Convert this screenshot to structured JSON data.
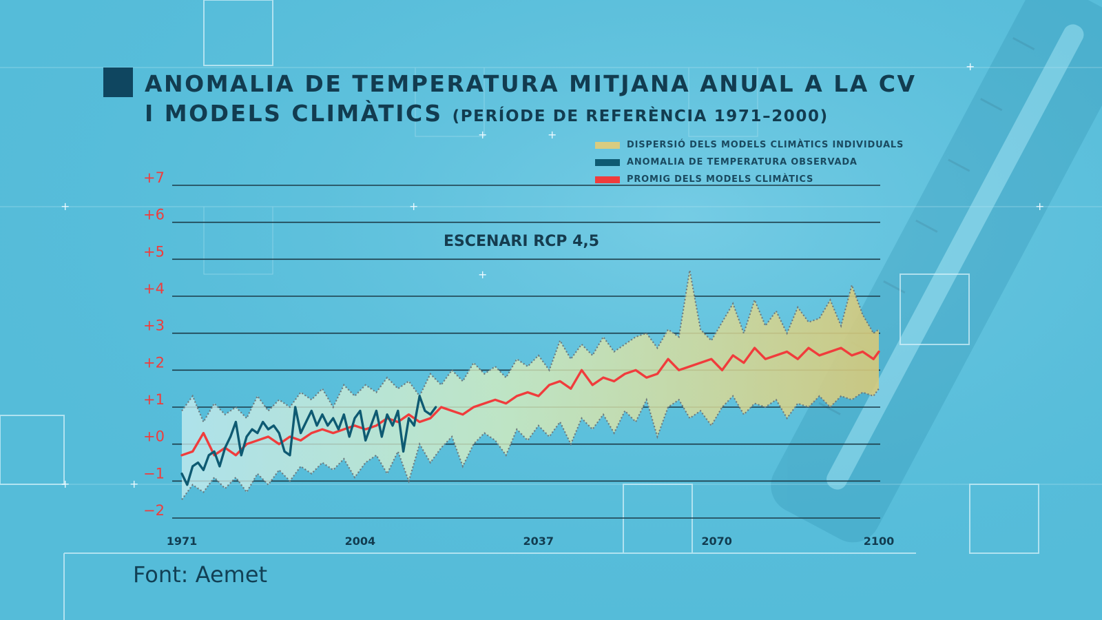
{
  "title": {
    "line1": "ANOMALIA DE TEMPERATURA MITJANA ANUAL A LA CV",
    "line2": "I MODELS CLIMÀTICS",
    "line2_sub": "(PERÍODE DE REFERÈNCIA 1971–2000)"
  },
  "legend": [
    {
      "label": "DISPERSIÓ DELS MODELS CLIMÀTICS INDIVIDUALS",
      "color": "#d9cc80"
    },
    {
      "label": "ANOMALIA DE TEMPERATURA OBSERVADA",
      "color": "#0e5a72"
    },
    {
      "label": "PROMIG DELS MODELS CLIMÀTICS",
      "color": "#f03c3c"
    }
  ],
  "source": "Font: Aemet",
  "colors": {
    "background": "#55bcd9",
    "title": "#123c50",
    "tick_label": "#f03c3c",
    "observed": "#0e5a72",
    "model_mean": "#f03c3c",
    "band_start": "#cbeef0",
    "band_end": "#d6c97a",
    "grid": "#1b3a47"
  },
  "chart_data": {
    "type": "line",
    "title": "ANOMALIA DE TEMPERATURA MITJANA ANUAL A LA CV I MODELS CLIMÀTICS (PERÍODE DE REFERÈNCIA 1971–2000)",
    "annotation": "ESCENARI RCP 4,5",
    "xlabel": "",
    "ylabel": "",
    "xlim": [
      1971,
      2100
    ],
    "ylim": [
      -2,
      7
    ],
    "grid": true,
    "legend_position": "top-right",
    "x_ticks": [
      1971,
      2004,
      2037,
      2070,
      2100
    ],
    "x_tick_labels": [
      "1971",
      "2004",
      "2037",
      "2070",
      "2100"
    ],
    "y_ticks": [
      7,
      6,
      5,
      4,
      3,
      2,
      1,
      0,
      -1,
      -2
    ],
    "y_tick_labels": [
      "+7",
      "+6",
      "+5",
      "+4",
      "+3",
      "+2",
      "+1",
      "+0",
      "−1",
      "−2"
    ],
    "series": [
      {
        "name": "DISPERSIÓ DELS MODELS CLIMÀTICS INDIVIDUALS",
        "kind": "band",
        "x": [
          1971,
          1973,
          1975,
          1977,
          1979,
          1981,
          1983,
          1985,
          1987,
          1989,
          1991,
          1993,
          1995,
          1997,
          1999,
          2001,
          2003,
          2005,
          2007,
          2009,
          2011,
          2013,
          2015,
          2017,
          2019,
          2021,
          2023,
          2025,
          2027,
          2029,
          2031,
          2033,
          2035,
          2037,
          2039,
          2041,
          2043,
          2045,
          2047,
          2049,
          2051,
          2053,
          2055,
          2057,
          2059,
          2061,
          2063,
          2065,
          2067,
          2069,
          2071,
          2073,
          2075,
          2077,
          2079,
          2081,
          2083,
          2085,
          2087,
          2089,
          2091,
          2093,
          2095,
          2097,
          2099,
          2100
        ],
        "upper": [
          0.9,
          1.3,
          0.6,
          1.1,
          0.8,
          1.0,
          0.7,
          1.3,
          0.9,
          1.2,
          1.0,
          1.4,
          1.2,
          1.5,
          1.0,
          1.6,
          1.3,
          1.6,
          1.4,
          1.8,
          1.5,
          1.7,
          1.3,
          1.9,
          1.6,
          2.0,
          1.7,
          2.2,
          1.9,
          2.1,
          1.8,
          2.3,
          2.1,
          2.4,
          2.0,
          2.8,
          2.3,
          2.7,
          2.4,
          2.9,
          2.5,
          2.7,
          2.9,
          3.0,
          2.6,
          3.1,
          2.9,
          4.7,
          3.1,
          2.8,
          3.3,
          3.8,
          3.0,
          3.9,
          3.2,
          3.6,
          3.0,
          3.7,
          3.3,
          3.4,
          3.9,
          3.2,
          4.3,
          3.5,
          3.0,
          3.1
        ],
        "lower": [
          -1.5,
          -1.1,
          -1.3,
          -0.9,
          -1.2,
          -0.9,
          -1.3,
          -0.8,
          -1.1,
          -0.7,
          -1.0,
          -0.6,
          -0.8,
          -0.5,
          -0.7,
          -0.4,
          -0.9,
          -0.5,
          -0.3,
          -0.8,
          -0.2,
          -1.0,
          0.0,
          -0.5,
          -0.1,
          0.2,
          -0.6,
          0.0,
          0.3,
          0.1,
          -0.3,
          0.4,
          0.1,
          0.5,
          0.2,
          0.6,
          0.0,
          0.7,
          0.4,
          0.8,
          0.3,
          0.9,
          0.6,
          1.2,
          0.2,
          1.0,
          1.2,
          0.7,
          0.9,
          0.5,
          1.0,
          1.3,
          0.8,
          1.1,
          1.0,
          1.2,
          0.7,
          1.1,
          1.0,
          1.3,
          1.0,
          1.3,
          1.2,
          1.4,
          1.3,
          1.5
        ]
      },
      {
        "name": "ANOMALIA DE TEMPERATURA OBSERVADA",
        "kind": "line",
        "x": [
          1971,
          1972,
          1973,
          1974,
          1975,
          1976,
          1977,
          1978,
          1979,
          1980,
          1981,
          1982,
          1983,
          1984,
          1985,
          1986,
          1987,
          1988,
          1989,
          1990,
          1991,
          1992,
          1993,
          1994,
          1995,
          1996,
          1997,
          1998,
          1999,
          2000,
          2001,
          2002,
          2003,
          2004,
          2005,
          2006,
          2007,
          2008,
          2009,
          2010,
          2011,
          2012,
          2013,
          2014,
          2015,
          2016,
          2017,
          2018
        ],
        "values": [
          -0.8,
          -1.1,
          -0.6,
          -0.5,
          -0.7,
          -0.3,
          -0.2,
          -0.6,
          -0.1,
          0.2,
          0.6,
          -0.3,
          0.2,
          0.4,
          0.3,
          0.6,
          0.4,
          0.5,
          0.3,
          -0.2,
          -0.3,
          1.0,
          0.3,
          0.6,
          0.9,
          0.5,
          0.8,
          0.5,
          0.7,
          0.4,
          0.8,
          0.2,
          0.7,
          0.9,
          0.1,
          0.5,
          0.9,
          0.2,
          0.8,
          0.5,
          0.9,
          -0.2,
          0.7,
          0.5,
          1.3,
          0.9,
          0.8,
          1.0
        ]
      },
      {
        "name": "PROMIG DELS MODELS CLIMÀTICS",
        "kind": "line",
        "x": [
          1971,
          1973,
          1975,
          1977,
          1979,
          1981,
          1983,
          1985,
          1987,
          1989,
          1991,
          1993,
          1995,
          1997,
          1999,
          2001,
          2003,
          2005,
          2007,
          2009,
          2011,
          2013,
          2015,
          2017,
          2019,
          2021,
          2023,
          2025,
          2027,
          2029,
          2031,
          2033,
          2035,
          2037,
          2039,
          2041,
          2043,
          2045,
          2047,
          2049,
          2051,
          2053,
          2055,
          2057,
          2059,
          2061,
          2063,
          2065,
          2067,
          2069,
          2071,
          2073,
          2075,
          2077,
          2079,
          2081,
          2083,
          2085,
          2087,
          2089,
          2091,
          2093,
          2095,
          2097,
          2099,
          2100
        ],
        "values": [
          -0.3,
          -0.2,
          0.3,
          -0.3,
          -0.1,
          -0.3,
          0.0,
          0.1,
          0.2,
          0.0,
          0.2,
          0.1,
          0.3,
          0.4,
          0.3,
          0.4,
          0.5,
          0.4,
          0.5,
          0.7,
          0.6,
          0.8,
          0.6,
          0.7,
          1.0,
          0.9,
          0.8,
          1.0,
          1.1,
          1.2,
          1.1,
          1.3,
          1.4,
          1.3,
          1.6,
          1.7,
          1.5,
          2.0,
          1.6,
          1.8,
          1.7,
          1.9,
          2.0,
          1.8,
          1.9,
          2.3,
          2.0,
          2.1,
          2.2,
          2.3,
          2.0,
          2.4,
          2.2,
          2.6,
          2.3,
          2.4,
          2.5,
          2.3,
          2.6,
          2.4,
          2.5,
          2.6,
          2.4,
          2.5,
          2.3,
          2.5
        ]
      }
    ]
  }
}
